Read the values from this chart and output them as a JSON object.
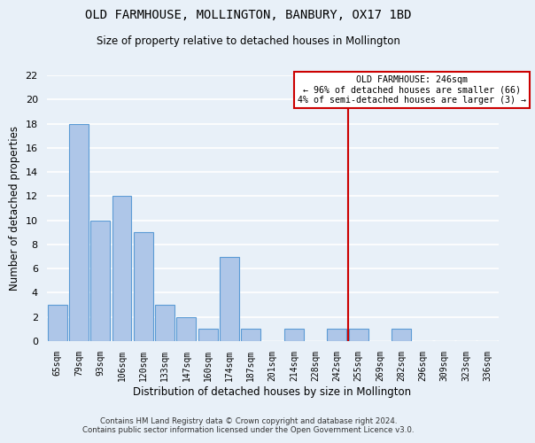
{
  "title": "OLD FARMHOUSE, MOLLINGTON, BANBURY, OX17 1BD",
  "subtitle": "Size of property relative to detached houses in Mollington",
  "xlabel": "Distribution of detached houses by size in Mollington",
  "ylabel": "Number of detached properties",
  "categories": [
    "65sqm",
    "79sqm",
    "93sqm",
    "106sqm",
    "120sqm",
    "133sqm",
    "147sqm",
    "160sqm",
    "174sqm",
    "187sqm",
    "201sqm",
    "214sqm",
    "228sqm",
    "242sqm",
    "255sqm",
    "269sqm",
    "282sqm",
    "296sqm",
    "309sqm",
    "323sqm",
    "336sqm"
  ],
  "values": [
    3,
    18,
    10,
    12,
    9,
    3,
    2,
    1,
    7,
    1,
    0,
    1,
    0,
    1,
    1,
    0,
    1,
    0,
    0,
    0,
    0
  ],
  "bar_color": "#aec6e8",
  "bar_edge_color": "#5b9bd5",
  "vline_x_index": 13.5,
  "vline_color": "#cc0000",
  "annotation_line1": "OLD FARMHOUSE: 246sqm",
  "annotation_line2": "← 96% of detached houses are smaller (66)",
  "annotation_line3": "4% of semi-detached houses are larger (3) →",
  "annotation_box_color": "#ffffff",
  "annotation_box_edgecolor": "#cc0000",
  "ylim": [
    0,
    22
  ],
  "yticks": [
    0,
    2,
    4,
    6,
    8,
    10,
    12,
    14,
    16,
    18,
    20,
    22
  ],
  "background_color": "#e8f0f8",
  "grid_color": "#ffffff",
  "footer": "Contains HM Land Registry data © Crown copyright and database right 2024.\nContains public sector information licensed under the Open Government Licence v3.0."
}
